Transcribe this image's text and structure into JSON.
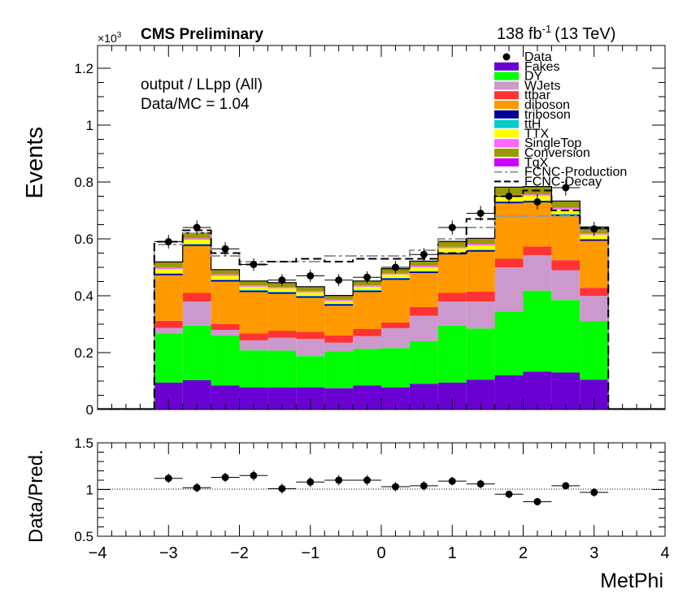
{
  "header": {
    "experiment": "CMS Preliminary",
    "lumi_value": "138 fb",
    "lumi_exp": "-1",
    "lumi_energy": "(13 TeV)",
    "exponent_base": "×10",
    "exponent_power": "3"
  },
  "info": {
    "region": "output / LLpp (All)",
    "ratio_text": "Data/MC = 1.04"
  },
  "colors": {
    "Fakes": "#6a00d2",
    "DY": "#00ff00",
    "WJets": "#cc99cc",
    "ttbar": "#ff3333",
    "diboson": "#ff9900",
    "triboson": "#000099",
    "ttH": "#00cccc",
    "TTX": "#ffff00",
    "SingleTop": "#ff66ff",
    "Conversion": "#999900",
    "TqX": "#cc00ff",
    "FCNC-Production": "#999999",
    "FCNC-Decay": "#000000"
  },
  "legend_entries": [
    "Data",
    "Fakes",
    "DY",
    "WJets",
    "ttbar",
    "diboson",
    "triboson",
    "ttH",
    "TTX",
    "SingleTop",
    "Conversion",
    "TqX",
    "FCNC-Production",
    "FCNC-Decay"
  ],
  "chart_data": [
    {
      "type": "bar",
      "stacked": true,
      "xlabel": "MetPhi",
      "ylabel": "Events",
      "y_scale_label": "×10³",
      "xlim": [
        -4,
        4
      ],
      "ylim": [
        0,
        1.28
      ],
      "yticks": [
        0,
        0.2,
        0.4,
        0.6,
        0.8,
        1,
        1.2
      ],
      "xticks": [
        -4,
        -3,
        -2,
        -1,
        0,
        1,
        2,
        3,
        4
      ],
      "bin_edges": [
        -3.2,
        -2.8,
        -2.4,
        -2.0,
        -1.6,
        -1.2,
        -0.8,
        -0.4,
        0.0,
        0.4,
        0.8,
        1.2,
        1.6,
        2.0,
        2.4,
        2.8,
        3.2
      ],
      "series": [
        {
          "name": "Fakes",
          "values": [
            0.095,
            0.103,
            0.085,
            0.078,
            0.077,
            0.078,
            0.075,
            0.085,
            0.078,
            0.09,
            0.095,
            0.105,
            0.12,
            0.133,
            0.13,
            0.105
          ]
        },
        {
          "name": "DY",
          "values": [
            0.172,
            0.192,
            0.175,
            0.13,
            0.13,
            0.11,
            0.13,
            0.128,
            0.138,
            0.15,
            0.2,
            0.18,
            0.225,
            0.285,
            0.255,
            0.205
          ]
        },
        {
          "name": "WJets",
          "values": [
            0.02,
            0.085,
            0.02,
            0.035,
            0.045,
            0.06,
            0.03,
            0.045,
            0.07,
            0.09,
            0.085,
            0.095,
            0.155,
            0.125,
            0.105,
            0.09
          ]
        },
        {
          "name": "ttbar",
          "values": [
            0.025,
            0.03,
            0.02,
            0.025,
            0.025,
            0.025,
            0.025,
            0.025,
            0.02,
            0.03,
            0.03,
            0.035,
            0.03,
            0.03,
            0.035,
            0.028
          ]
        },
        {
          "name": "diboson",
          "values": [
            0.16,
            0.165,
            0.15,
            0.145,
            0.13,
            0.12,
            0.105,
            0.13,
            0.15,
            0.12,
            0.135,
            0.14,
            0.195,
            0.155,
            0.155,
            0.165
          ]
        },
        {
          "name": "triboson",
          "values": [
            0.005,
            0.005,
            0.005,
            0.005,
            0.005,
            0.005,
            0.005,
            0.005,
            0.005,
            0.005,
            0.005,
            0.005,
            0.005,
            0.005,
            0.005,
            0.005
          ]
        },
        {
          "name": "ttH",
          "values": [
            0.002,
            0.002,
            0.002,
            0.002,
            0.002,
            0.002,
            0.002,
            0.002,
            0.002,
            0.002,
            0.002,
            0.002,
            0.002,
            0.002,
            0.002,
            0.002
          ]
        },
        {
          "name": "TTX",
          "values": [
            0.015,
            0.015,
            0.013,
            0.012,
            0.012,
            0.012,
            0.01,
            0.012,
            0.012,
            0.013,
            0.015,
            0.015,
            0.018,
            0.017,
            0.017,
            0.015
          ]
        },
        {
          "name": "SingleTop",
          "values": [
            0.005,
            0.005,
            0.005,
            0.005,
            0.005,
            0.005,
            0.005,
            0.005,
            0.005,
            0.005,
            0.005,
            0.005,
            0.005,
            0.005,
            0.005,
            0.005
          ]
        },
        {
          "name": "Conversion",
          "values": [
            0.018,
            0.017,
            0.015,
            0.013,
            0.013,
            0.013,
            0.012,
            0.013,
            0.013,
            0.015,
            0.017,
            0.018,
            0.025,
            0.025,
            0.022,
            0.02
          ]
        },
        {
          "name": "TqX",
          "values": [
            0.002,
            0.002,
            0.002,
            0.002,
            0.002,
            0.002,
            0.002,
            0.002,
            0.002,
            0.002,
            0.002,
            0.002,
            0.002,
            0.002,
            0.002,
            0.002
          ]
        }
      ],
      "overlays": [
        {
          "name": "FCNC-Production",
          "style": "dash-dot",
          "values": [
            0.58,
            0.62,
            0.54,
            0.52,
            0.52,
            0.52,
            0.54,
            0.54,
            0.54,
            0.56,
            0.6,
            0.64,
            0.68,
            0.68,
            0.68,
            0.63
          ]
        },
        {
          "name": "FCNC-Decay",
          "style": "long-dash",
          "values": [
            0.59,
            0.63,
            0.55,
            0.51,
            0.52,
            0.53,
            0.52,
            0.53,
            0.53,
            0.53,
            0.55,
            0.67,
            0.75,
            0.77,
            0.7,
            0.64
          ]
        }
      ],
      "data_points": {
        "name": "Data",
        "x": [
          -3.0,
          -2.6,
          -2.2,
          -1.8,
          -1.4,
          -1.0,
          -0.6,
          -0.2,
          0.2,
          0.6,
          1.0,
          1.4,
          1.8,
          2.2,
          2.6,
          3.0
        ],
        "y": [
          0.59,
          0.64,
          0.565,
          0.51,
          0.455,
          0.47,
          0.455,
          0.465,
          0.5,
          0.545,
          0.64,
          0.69,
          0.75,
          0.73,
          0.78,
          0.635
        ],
        "err": [
          0.024,
          0.025,
          0.024,
          0.022,
          0.021,
          0.022,
          0.021,
          0.021,
          0.022,
          0.023,
          0.025,
          0.026,
          0.027,
          0.027,
          0.028,
          0.025
        ]
      }
    },
    {
      "type": "scatter",
      "xlabel": "MetPhi",
      "ylabel": "Data/Pred.",
      "xlim": [
        -4,
        4
      ],
      "ylim": [
        0.5,
        1.5
      ],
      "yticks": [
        0.5,
        1,
        1.5
      ],
      "reference_line": 1,
      "x": [
        -3.0,
        -2.6,
        -2.2,
        -1.8,
        -1.4,
        -1.0,
        -0.6,
        -0.2,
        0.2,
        0.6,
        1.0,
        1.4,
        1.8,
        2.2,
        2.6,
        3.0
      ],
      "y": [
        1.12,
        1.02,
        1.13,
        1.15,
        1.01,
        1.08,
        1.1,
        1.1,
        1.03,
        1.04,
        1.09,
        1.06,
        0.95,
        0.87,
        1.04,
        0.97
      ],
      "err": [
        0.05,
        0.05,
        0.05,
        0.055,
        0.055,
        0.055,
        0.055,
        0.055,
        0.05,
        0.05,
        0.045,
        0.045,
        0.04,
        0.04,
        0.04,
        0.045
      ]
    }
  ]
}
